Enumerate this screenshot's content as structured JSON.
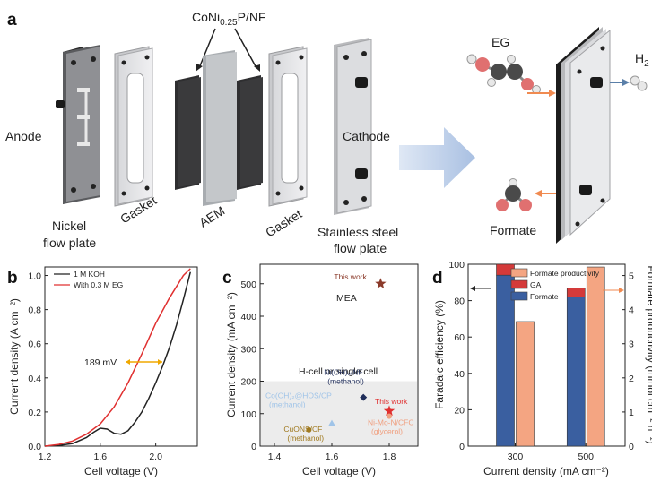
{
  "figure": {
    "panel_a": {
      "label": "a",
      "catalyst": "CoNi",
      "catalyst_sub": "0.25",
      "catalyst_end": "P/NF",
      "anode": "Anode",
      "cathode": "Cathode",
      "nickel_plate": [
        "Nickel",
        "flow plate"
      ],
      "gasket_left": "Gasket",
      "aem": "AEM",
      "gasket_right": "Gasket",
      "steel_plate": [
        "Stainless steel",
        "flow plate"
      ],
      "eg": "EG",
      "h2": "H",
      "h2_sub": "2",
      "formate": "Formate"
    },
    "panel_b": {
      "label": "b",
      "annotation": "189 mV"
    },
    "panel_c": {
      "label": "c",
      "mea_label": "MEA",
      "hcell_label": "H-cell or single cell"
    },
    "panel_d": {
      "label": "d"
    }
  },
  "chart_data": [
    {
      "id": "b",
      "type": "line",
      "xlabel": "Cell voltage (V)",
      "ylabel": "Current density (A cm⁻²)",
      "xlim": [
        1.2,
        2.3
      ],
      "ylim": [
        0,
        1.05
      ],
      "xticks": [
        "1.2",
        "1.6",
        "2.0"
      ],
      "yticks": [
        "0.0",
        "0.2",
        "0.4",
        "0.6",
        "0.8",
        "1.0"
      ],
      "series": [
        {
          "name": "1 M KOH",
          "color": "#222222",
          "x": [
            1.2,
            1.3,
            1.4,
            1.5,
            1.55,
            1.6,
            1.65,
            1.7,
            1.75,
            1.8,
            1.85,
            1.9,
            1.95,
            2.0,
            2.05,
            2.1,
            2.15,
            2.2,
            2.25
          ],
          "y": [
            0,
            0.004,
            0.015,
            0.05,
            0.08,
            0.105,
            0.1,
            0.075,
            0.07,
            0.09,
            0.14,
            0.2,
            0.28,
            0.37,
            0.47,
            0.58,
            0.71,
            0.86,
            1.02
          ]
        },
        {
          "name": "With 0.3 M EG",
          "color": "#e03030",
          "x": [
            1.2,
            1.3,
            1.4,
            1.5,
            1.6,
            1.7,
            1.8,
            1.9,
            2.0,
            2.1,
            2.2,
            2.25
          ],
          "y": [
            0,
            0.01,
            0.03,
            0.07,
            0.13,
            0.23,
            0.37,
            0.54,
            0.72,
            0.87,
            1.0,
            1.04
          ]
        }
      ]
    },
    {
      "id": "c",
      "type": "scatter",
      "xlabel": "Cell voltage (V)",
      "ylabel": "Current density (mA cm⁻²)",
      "xlim": [
        1.35,
        1.9
      ],
      "ylim": [
        0,
        560
      ],
      "xticks": [
        "1.4",
        "1.6",
        "1.8"
      ],
      "yticks": [
        "0",
        "100",
        "200",
        "300",
        "400",
        "500"
      ],
      "points": [
        {
          "label": "This work",
          "x": 1.77,
          "y": 500,
          "marker": "star",
          "color": "#8b3a2a"
        },
        {
          "label": "Ni(OH)₂/NF",
          "sub": "(methanol)",
          "x": 1.71,
          "y": 150,
          "marker": "diamond",
          "color": "#1f2d5a"
        },
        {
          "label": "This work",
          "x": 1.8,
          "y": 108,
          "marker": "star",
          "color": "#e03030"
        },
        {
          "label": "Ni-Mo-N/CFC",
          "sub": "(glycerol)",
          "x": 1.8,
          "y": 92,
          "marker": "circle",
          "color": "#f0a080"
        },
        {
          "label": "Co(OH)₂@HOS/CP",
          "sub": "(methanol)",
          "x": 1.6,
          "y": 70,
          "marker": "triangle",
          "color": "#a0c4e8"
        },
        {
          "label": "CuONS/CF",
          "sub": "(methanol)",
          "x": 1.52,
          "y": 50,
          "marker": "circle",
          "color": "#a07a20"
        }
      ]
    },
    {
      "id": "d",
      "type": "bar",
      "xlabel": "Current density (mA cm⁻²)",
      "ylabel": "Faradaic efficiency (%)",
      "ylabel_right": "Formate productivity (mmol cm⁻² h⁻¹)",
      "categories": [
        "300",
        "500"
      ],
      "ylim": [
        0,
        100
      ],
      "ylim_right": [
        0,
        5.33
      ],
      "yticks": [
        "0",
        "20",
        "40",
        "60",
        "80",
        "100"
      ],
      "yticks_right": [
        "0",
        "1",
        "2",
        "3",
        "4",
        "5"
      ],
      "series": [
        {
          "name": "Formate",
          "color": "#3a5fa0",
          "values": [
            94,
            82
          ]
        },
        {
          "name": "GA",
          "color": "#d43a3a",
          "values": [
            6,
            5
          ]
        },
        {
          "name": "Formate productivity",
          "color": "#f4a582",
          "values": [
            3.65,
            5.25
          ],
          "axis": "right"
        }
      ]
    }
  ]
}
